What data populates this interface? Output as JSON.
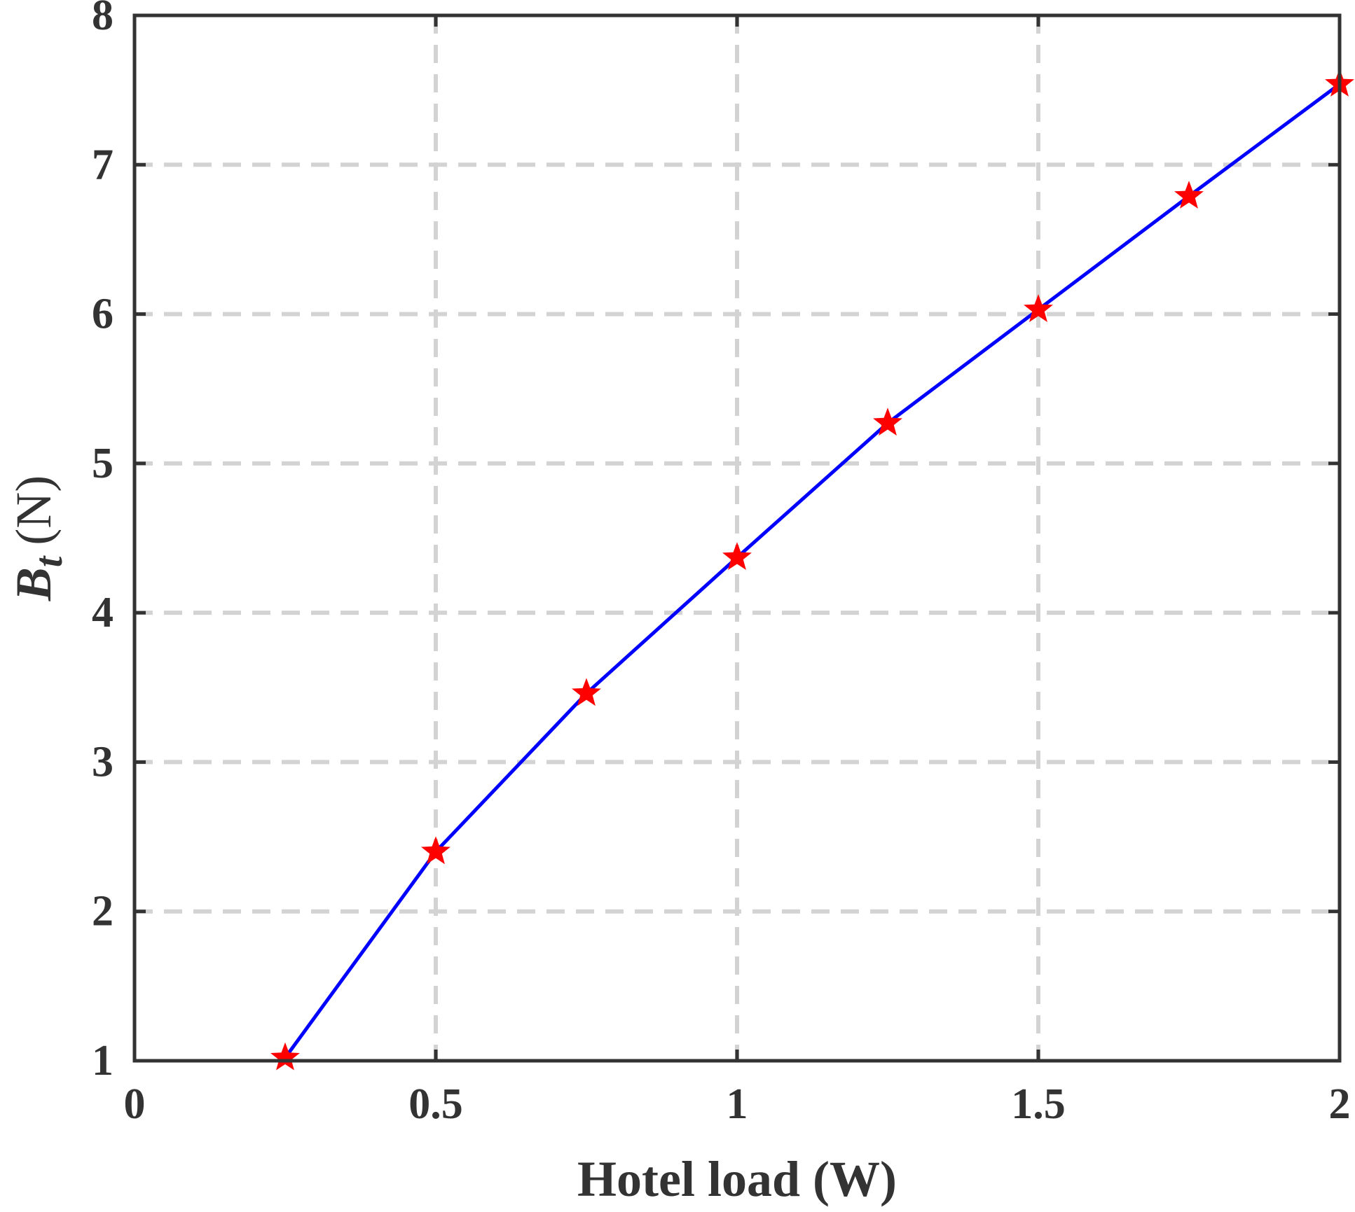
{
  "chart_data": {
    "type": "line",
    "xlabel": "Hotel load (W)",
    "ylabel": {
      "symbol": "B",
      "subscript": "t",
      "unit": "(N)"
    },
    "xlim": [
      0,
      2
    ],
    "ylim": [
      1,
      8
    ],
    "xticks": [
      0,
      0.5,
      1,
      1.5,
      2
    ],
    "xtick_labels": [
      "0",
      "0.5",
      "1",
      "1.5",
      "2"
    ],
    "yticks": [
      1,
      2,
      3,
      4,
      5,
      6,
      7,
      8
    ],
    "ytick_labels": [
      "1",
      "2",
      "3",
      "4",
      "5",
      "6",
      "7",
      "8"
    ],
    "grid": true,
    "legend": "none",
    "series": [
      {
        "x": [
          0.25,
          0.5,
          0.75,
          1.0,
          1.25,
          1.5,
          1.75,
          2.0
        ],
        "y": [
          1.02,
          2.4,
          3.46,
          4.37,
          5.27,
          6.03,
          6.79,
          7.54
        ],
        "line_color": "#0000ff",
        "marker": "star",
        "marker_color": "#ff0000"
      }
    ],
    "colors": {
      "axis": "#333333",
      "grid": "#d3d3d3"
    }
  }
}
